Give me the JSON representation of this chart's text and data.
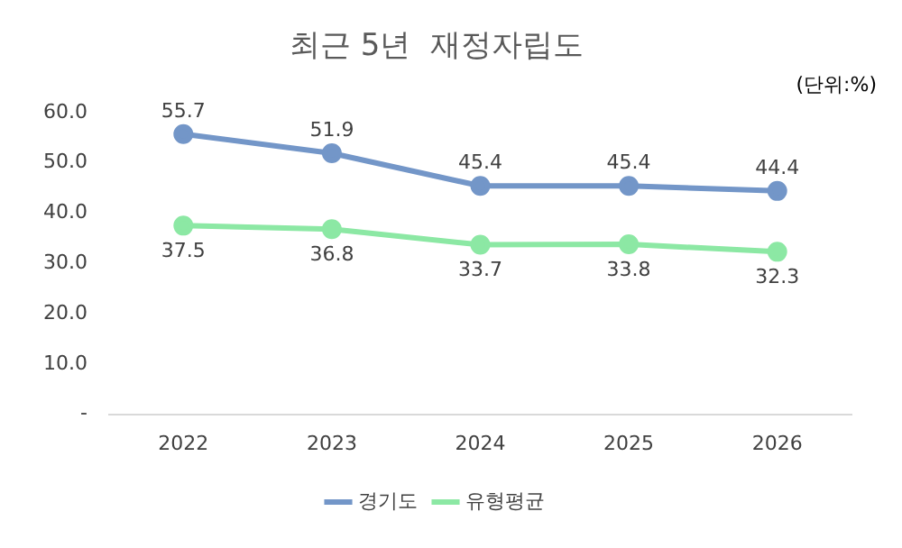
{
  "chart_data": {
    "type": "line",
    "title": "최근 5년  재정자립도",
    "annotations": [
      "(단위:%)"
    ],
    "categories": [
      "2022",
      "2023",
      "2024",
      "2025",
      "2026"
    ],
    "series": [
      {
        "name": "경기도",
        "color": "#7396c8",
        "values": [
          55.7,
          51.9,
          45.4,
          45.4,
          44.4
        ]
      },
      {
        "name": "유형평균",
        "color": "#8ce8a4",
        "values": [
          37.5,
          36.8,
          33.7,
          33.8,
          32.3
        ]
      }
    ],
    "ylim": [
      0,
      60
    ],
    "yticks": [
      {
        "value": 0,
        "label": "-"
      },
      {
        "value": 10,
        "label": "10.0"
      },
      {
        "value": 20,
        "label": "20.0"
      },
      {
        "value": 30,
        "label": "30.0"
      },
      {
        "value": 40,
        "label": "40.0"
      },
      {
        "value": 50,
        "label": "50.0"
      },
      {
        "value": 60,
        "label": "60.0"
      }
    ],
    "grid": false,
    "legend": "bottom",
    "marker": "circle",
    "line_style": "solid",
    "data_labels": true
  }
}
